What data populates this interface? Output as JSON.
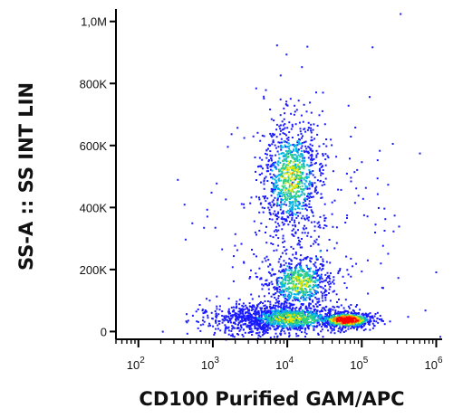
{
  "chart_data": {
    "type": "scatter",
    "subtype": "flow-cytometry-density-dot-plot",
    "xlabel": "CD100 Purified GAM/APC",
    "ylabel": "SS-A :: SS INT LIN",
    "x_scale": "log",
    "xlim": [
      50,
      1200000
    ],
    "ylim": [
      -25000,
      1040000
    ],
    "x_ticks": [
      {
        "value": 100,
        "base": "10",
        "exp": "2"
      },
      {
        "value": 1000,
        "base": "10",
        "exp": "3"
      },
      {
        "value": 10000,
        "base": "10",
        "exp": "4"
      },
      {
        "value": 100000,
        "base": "10",
        "exp": "5"
      },
      {
        "value": 1000000,
        "base": "10",
        "exp": "6"
      }
    ],
    "y_ticks": [
      {
        "value": 0,
        "label": "0"
      },
      {
        "value": 200000,
        "label": "200K"
      },
      {
        "value": 400000,
        "label": "400K"
      },
      {
        "value": 600000,
        "label": "600K"
      },
      {
        "value": 800000,
        "label": "800K"
      },
      {
        "value": 1000000,
        "label": "1,0M"
      }
    ],
    "grid": false,
    "legend": "none",
    "color_scale": [
      "#1a1aff",
      "#00b4e6",
      "#33d17a",
      "#e6e600",
      "#ff8000",
      "#ff0000"
    ],
    "populations": [
      {
        "name": "",
        "x_center": 60000,
        "y_center": 40000,
        "x_spread_log": 0.18,
        "y_spread": 12000,
        "points": 700,
        "peak_density": "high"
      },
      {
        "name": "",
        "x_center": 11000,
        "y_center": 45000,
        "x_spread_log": 0.35,
        "y_spread": 22000,
        "points": 900,
        "peak_density": "medium"
      },
      {
        "name": "",
        "x_center": 14000,
        "y_center": 160000,
        "x_spread_log": 0.22,
        "y_spread": 45000,
        "points": 600,
        "peak_density": "medium"
      },
      {
        "name": "",
        "x_center": 11000,
        "y_center": 500000,
        "x_spread_log": 0.2,
        "y_spread": 90000,
        "points": 900,
        "peak_density": "medium"
      },
      {
        "name": "",
        "x_center": 3000,
        "y_center": 40000,
        "x_spread_log": 0.35,
        "y_spread": 25000,
        "points": 450,
        "peak_density": "low"
      },
      {
        "name": "",
        "x_center": 20000,
        "y_center": 300000,
        "x_spread_log": 0.6,
        "y_spread": 250000,
        "points": 350,
        "peak_density": "low"
      }
    ]
  }
}
